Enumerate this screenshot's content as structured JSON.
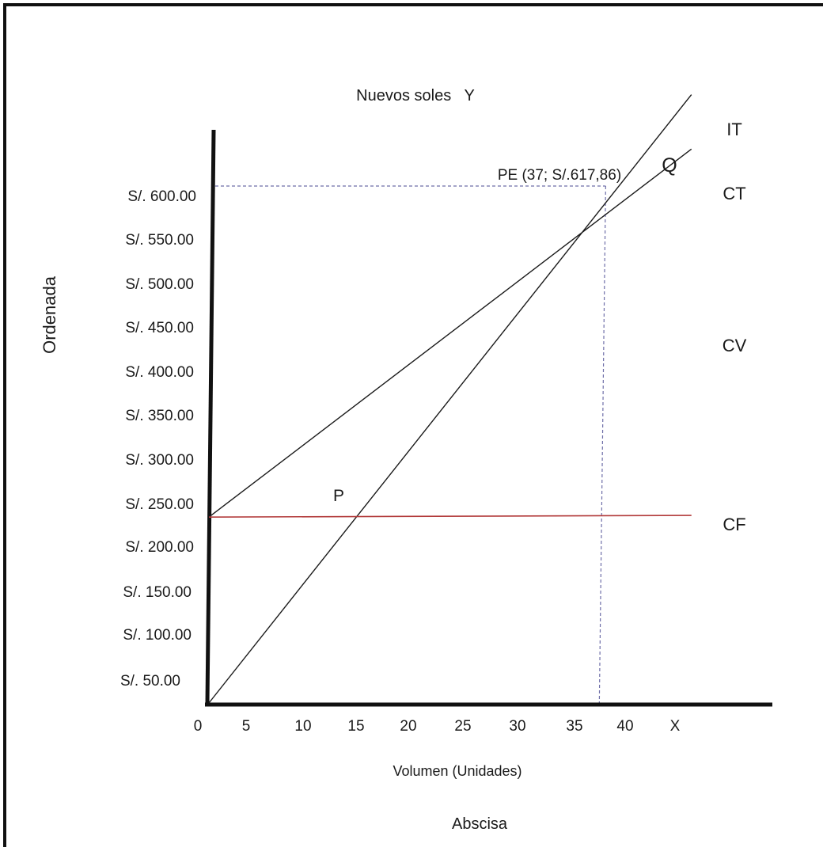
{
  "chart_data": {
    "type": "line",
    "title": "",
    "ylabel_top": "Nuevos soles   Y",
    "ylabel_side": "Ordenada",
    "xlabel": "Volumen (Unidades)",
    "xlabel_secondary": "Abscisa",
    "x_axis_end_label": "X",
    "x_ticks": [
      0,
      5,
      10,
      15,
      20,
      25,
      30,
      35,
      40
    ],
    "y_ticks": [
      50,
      100,
      150,
      200,
      250,
      300,
      350,
      400,
      450,
      500,
      550,
      600
    ],
    "y_tick_labels": [
      "S/. 50.00",
      "S/. 100.00",
      "S/. 150.00",
      "S/. 200.00",
      "S/. 250.00",
      "S/. 300.00",
      "S/. 350.00",
      "S/. 400.00",
      "S/. 450.00",
      "S/. 500.00",
      "S/. 550.00",
      "S/. 600.00"
    ],
    "series": [
      {
        "name": "IT",
        "x": [
          0,
          45
        ],
        "y": [
          0,
          746.1
        ]
      },
      {
        "name": "CT",
        "x": [
          0,
          45
        ],
        "y": [
          228,
          679.3
        ]
      },
      {
        "name": "CF",
        "x": [
          0,
          45
        ],
        "y": [
          228,
          230
        ]
      }
    ],
    "series_colors": {
      "IT": "#1a1a1a",
      "CT": "#1a1a1a",
      "CF": "#b23a3a"
    },
    "legend_labels": [
      "IT",
      "CT",
      "CV",
      "CF"
    ],
    "break_even": {
      "label": "PE (37; S/.617,86)",
      "x": 37,
      "y": 617.86,
      "guide_color": "#6e6ea8"
    },
    "annotations": [
      {
        "text": "Q",
        "near": "break-even"
      },
      {
        "text": "P",
        "near": "fixed-cost-intersection"
      }
    ]
  }
}
